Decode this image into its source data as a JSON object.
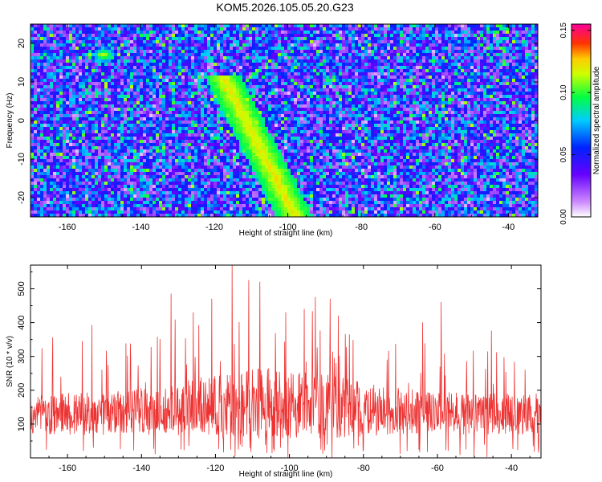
{
  "figure_title": "KOM5.2026.105.05.20.G23",
  "chart_data": [
    {
      "type": "heatmap",
      "title": "KOM5.2026.105.05.20.G23",
      "xlabel": "Height of straight line (km)",
      "ylabel": "Frequency (Hz)",
      "xlim": [
        -170,
        -32
      ],
      "ylim": [
        -25,
        25
      ],
      "xticks": [
        -160,
        -140,
        -120,
        -100,
        -80,
        -60,
        -40
      ],
      "xtick_labels": [
        "-160",
        "-140",
        "-120",
        "-100",
        "-80",
        "-60",
        "-40"
      ],
      "yticks": [
        -20,
        -10,
        0,
        10,
        20
      ],
      "ytick_labels": [
        "-20",
        "-10",
        "0",
        "10",
        "20"
      ],
      "colorbar": {
        "label": "Normalized spectral amplitude",
        "range": [
          0,
          0.155
        ],
        "ticks": [
          0.0,
          0.05,
          0.1,
          0.15
        ],
        "tick_labels": [
          "0.00",
          "0.05",
          "0.10",
          "0.15"
        ],
        "colormap": "rainbow (white-violet-blue-cyan-green-yellow-orange-red-magenta)"
      },
      "features": [
        {
          "name": "ridge",
          "x_range": [
            -118,
            -98
          ],
          "y_range": [
            -25,
            12
          ],
          "description": "enhanced amplitude streak drifting from upper-left to lower-right"
        },
        {
          "name": "hot-spot",
          "x": -103,
          "y": -15,
          "value": 0.14
        },
        {
          "name": "hot-spot",
          "x": -117,
          "y": 8,
          "value": 0.13
        },
        {
          "name": "hot-spot",
          "x": -113,
          "y": 1,
          "value": 0.12
        },
        {
          "name": "hot-spot",
          "x": -150,
          "y": 17,
          "value": 0.12
        }
      ]
    },
    {
      "type": "line",
      "xlabel": "Height of straight line (km)",
      "ylabel": "SNR (10 * v/v)",
      "xlim": [
        -170,
        -32
      ],
      "ylim": [
        0,
        570
      ],
      "xticks": [
        -160,
        -140,
        -120,
        -100,
        -80,
        -60,
        -40
      ],
      "xtick_labels": [
        "-160",
        "-140",
        "-120",
        "-100",
        "-80",
        "-60",
        "-40"
      ],
      "yticks": [
        100,
        200,
        300,
        400,
        500
      ],
      "ytick_labels": [
        "100",
        "200",
        "300",
        "400",
        "500"
      ],
      "color": "#ee3333",
      "series": [
        {
          "name": "SNR",
          "sampling_km": 0.1,
          "baseline_mean": 130,
          "noise_range": [
            0,
            330
          ],
          "peaks": [
            {
              "x": -115.5,
              "y": 570
            },
            {
              "x": -111,
              "y": 525
            },
            {
              "x": -108,
              "y": 520
            },
            {
              "x": -132,
              "y": 485
            },
            {
              "x": -93,
              "y": 475
            },
            {
              "x": -121,
              "y": 470
            },
            {
              "x": -89,
              "y": 470
            },
            {
              "x": -59,
              "y": 460
            },
            {
              "x": -96,
              "y": 440
            },
            {
              "x": -101,
              "y": 430
            },
            {
              "x": -126,
              "y": 430
            },
            {
              "x": -64,
              "y": 400
            },
            {
              "x": -156,
              "y": 345
            }
          ]
        }
      ]
    }
  ]
}
